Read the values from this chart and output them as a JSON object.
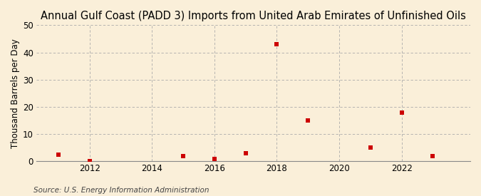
{
  "title": "Annual Gulf Coast (PADD 3) Imports from United Arab Emirates of Unfinished Oils",
  "ylabel": "Thousand Barrels per Day",
  "source": "Source: U.S. Energy Information Administration",
  "background_color": "#faefd9",
  "plot_background_color": "#faefd9",
  "data_color": "#cc0000",
  "marker": "s",
  "marker_size": 4,
  "x_data": [
    2011,
    2012,
    2015,
    2016,
    2017,
    2018,
    2019,
    2021,
    2022,
    2023
  ],
  "y_data": [
    2.5,
    0.2,
    2.0,
    1.0,
    3.0,
    43.0,
    15.0,
    5.0,
    18.0,
    2.0
  ],
  "xlim": [
    2010.3,
    2024.2
  ],
  "ylim": [
    0,
    50
  ],
  "yticks": [
    0,
    10,
    20,
    30,
    40,
    50
  ],
  "xticks": [
    2012,
    2014,
    2016,
    2018,
    2020,
    2022
  ],
  "grid_color": "#aaaaaa",
  "grid_style": "--",
  "title_fontsize": 10.5,
  "label_fontsize": 8.5,
  "tick_fontsize": 8.5,
  "source_fontsize": 7.5
}
